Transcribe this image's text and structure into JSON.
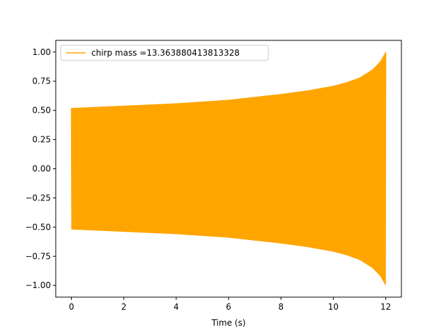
{
  "chart_data": {
    "type": "line",
    "title": "",
    "xlabel": "Time (s)",
    "ylabel": "",
    "xlim": [
      -0.6,
      12.6
    ],
    "ylim": [
      -1.1,
      1.1
    ],
    "x_ticks": [
      0,
      2,
      4,
      6,
      8,
      10,
      12
    ],
    "x_tick_labels": [
      "0",
      "2",
      "4",
      "6",
      "8",
      "10",
      "12"
    ],
    "y_ticks": [
      1.0,
      0.75,
      0.5,
      0.25,
      0.0,
      -0.25,
      -0.5,
      -0.75,
      -1.0
    ],
    "y_tick_labels": [
      "1.00",
      "0.75",
      "0.50",
      "0.25",
      "0.00",
      "−0.25",
      "−0.50",
      "−0.75",
      "−1.00"
    ],
    "grid": false,
    "legend_position": "top-left",
    "series": [
      {
        "name": "chirp mass =13.363880413813328",
        "color": "#ffa500",
        "description_of_signal": "rapid oscillation between a positive and negative envelope",
        "x_range": [
          0,
          12
        ],
        "envelope": {
          "x": [
            0,
            2,
            4,
            6,
            8,
            9,
            10,
            10.5,
            11,
            11.5,
            11.8,
            12
          ],
          "y": [
            0.52,
            0.54,
            0.56,
            0.59,
            0.64,
            0.67,
            0.71,
            0.74,
            0.78,
            0.85,
            0.92,
            1.0
          ]
        }
      }
    ]
  }
}
